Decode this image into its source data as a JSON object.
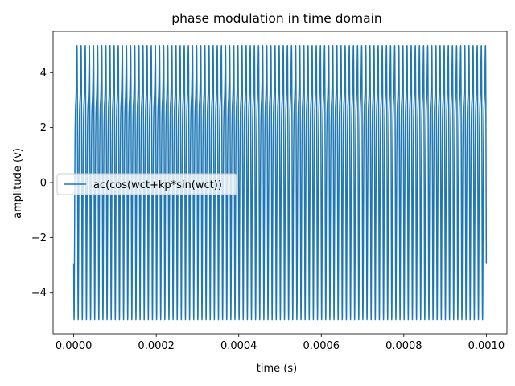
{
  "chart_data": {
    "type": "line",
    "title": "phase modulation in time domain",
    "xlabel": "time (s)",
    "ylabel": "amplitude (v)",
    "xlim": [
      -5e-05,
      0.00105
    ],
    "ylim": [
      -5.5,
      5.5
    ],
    "x_ticks": [
      0.0,
      0.0002,
      0.0004,
      0.0006,
      0.0008,
      0.001
    ],
    "x_tick_labels": [
      "0.0000",
      "0.0002",
      "0.0004",
      "0.0006",
      "0.0008",
      "0.0010"
    ],
    "y_ticks": [
      -4,
      -2,
      0,
      2,
      4
    ],
    "y_tick_labels": [
      "−4",
      "−2",
      "0",
      "2",
      "4"
    ],
    "grid": false,
    "legend": "center-left",
    "series": [
      {
        "name": "ac(cos(wct+kp*sin(wct))",
        "color": "#1f77b4",
        "function": {
          "ac": 5,
          "carrier_frequency_hz": 100000,
          "kp": 0.9,
          "phase_offset_rad": 2.2,
          "t_start": 0,
          "t_end": 0.001,
          "samples": 4000
        }
      }
    ]
  }
}
